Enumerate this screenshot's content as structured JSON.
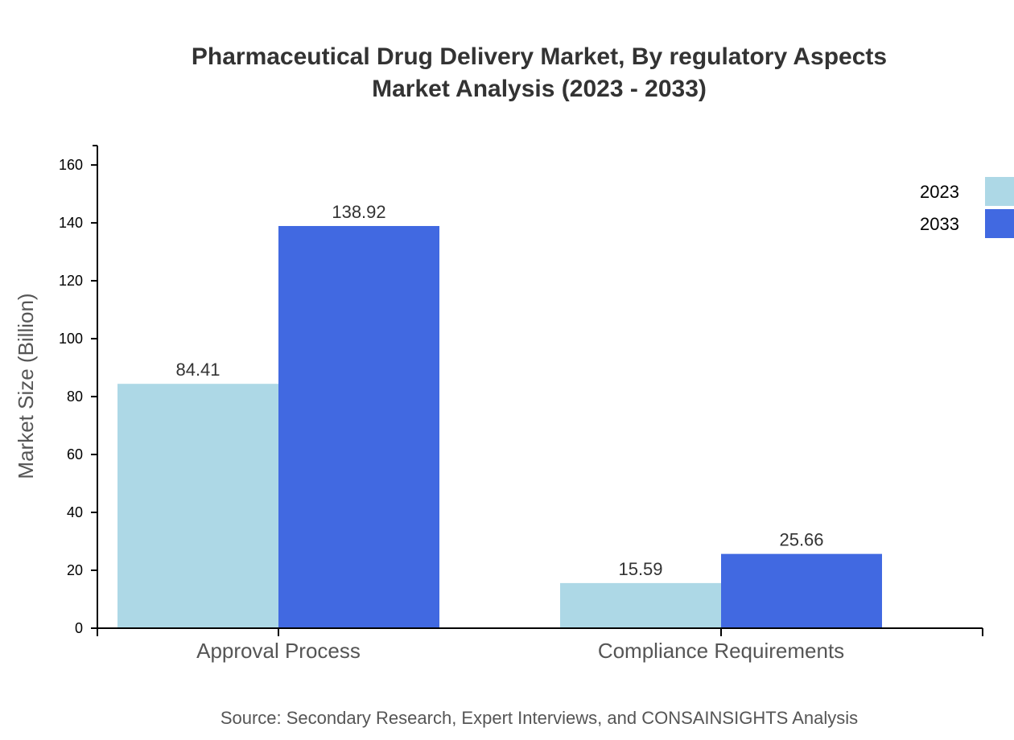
{
  "chart_data": {
    "type": "bar",
    "title": "Pharmaceutical Drug Delivery Market, By regulatory Aspects",
    "subtitle": "Market Analysis (2023 - 2033)",
    "xlabel": "",
    "ylabel": "Market Size (Billion)",
    "categories": [
      "Approval Process",
      "Compliance Requirements"
    ],
    "series": [
      {
        "name": "2023",
        "color": "#ADD8E6",
        "values": [
          84.41,
          15.59
        ]
      },
      {
        "name": "2033",
        "color": "#4169E1",
        "values": [
          138.92,
          25.66
        ]
      }
    ],
    "data_labels": [
      [
        "84.41",
        "15.59"
      ],
      [
        "138.92",
        "25.66"
      ]
    ],
    "ylim": [
      0,
      166.7
    ],
    "yticks": [
      0,
      20,
      40,
      60,
      80,
      100,
      120,
      140,
      160
    ],
    "grid": false,
    "legend": "top-right",
    "source": "Source: Secondary Research, Expert Interviews, and CONSAINSIGHTS Analysis"
  }
}
